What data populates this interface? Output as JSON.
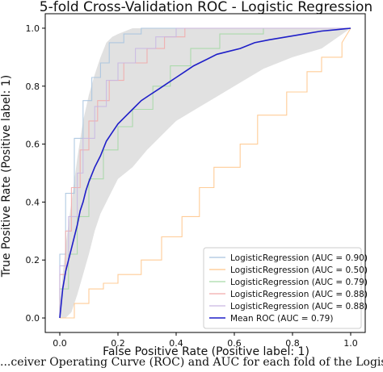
{
  "caption": "...ceiver Operating Curve (ROC) and AUC for each fold of the Logistic Re",
  "chart_data": {
    "type": "line",
    "title": "5-fold Cross-Validation ROC - Logistic Regression",
    "xlabel": "False Positive Rate (Positive label: 1)",
    "ylabel": "True Positive Rate (Positive label: 1)",
    "xlim": [
      -0.05,
      1.05
    ],
    "ylim": [
      -0.05,
      1.05
    ],
    "xticks": [
      "0.0",
      "0.2",
      "0.4",
      "0.6",
      "0.8",
      "1.0"
    ],
    "yticks": [
      "0.0",
      "0.2",
      "0.4",
      "0.6",
      "0.8",
      "1.0"
    ],
    "grid": false,
    "legend_position": "lower-right",
    "series": [
      {
        "name": "LogisticRegression (AUC = 0.90)",
        "color": "#a9c4df",
        "x": [
          0,
          0,
          0.02,
          0.02,
          0.05,
          0.05,
          0.08,
          0.08,
          0.11,
          0.11,
          0.14,
          0.14,
          0.17,
          0.17,
          0.22,
          0.22,
          0.28,
          0.28,
          0.4,
          0.4,
          0.6,
          0.6,
          1.0
        ],
        "y": [
          0,
          0.22,
          0.22,
          0.43,
          0.43,
          0.62,
          0.62,
          0.75,
          0.75,
          0.83,
          0.83,
          0.88,
          0.88,
          0.95,
          0.95,
          0.98,
          0.98,
          1.0,
          1.0,
          1.0,
          1.0,
          1.0,
          1.0
        ]
      },
      {
        "name": "LogisticRegression (AUC = 0.50)",
        "color": "#ffc68c",
        "x": [
          0,
          0.05,
          0.05,
          0.1,
          0.1,
          0.15,
          0.15,
          0.2,
          0.2,
          0.28,
          0.28,
          0.35,
          0.35,
          0.42,
          0.42,
          0.48,
          0.48,
          0.53,
          0.53,
          0.62,
          0.62,
          0.68,
          0.68,
          0.78,
          0.78,
          0.85,
          0.85,
          0.9,
          0.9,
          0.97,
          0.97,
          1.0
        ],
        "y": [
          0,
          0,
          0.05,
          0.05,
          0.1,
          0.1,
          0.12,
          0.12,
          0.15,
          0.15,
          0.2,
          0.2,
          0.28,
          0.28,
          0.35,
          0.35,
          0.45,
          0.45,
          0.52,
          0.52,
          0.6,
          0.6,
          0.7,
          0.7,
          0.78,
          0.78,
          0.85,
          0.85,
          0.9,
          0.9,
          0.95,
          1.0
        ]
      },
      {
        "name": "LogisticRegression (AUC = 0.79)",
        "color": "#a6d9a6",
        "x": [
          0,
          0,
          0.03,
          0.03,
          0.06,
          0.06,
          0.1,
          0.1,
          0.15,
          0.15,
          0.2,
          0.2,
          0.25,
          0.25,
          0.32,
          0.32,
          0.38,
          0.38,
          0.45,
          0.45,
          0.55,
          0.55,
          0.7,
          0.7,
          1.0
        ],
        "y": [
          0,
          0.1,
          0.1,
          0.22,
          0.22,
          0.35,
          0.35,
          0.48,
          0.48,
          0.58,
          0.58,
          0.66,
          0.66,
          0.72,
          0.72,
          0.8,
          0.8,
          0.87,
          0.87,
          0.93,
          0.93,
          0.98,
          0.98,
          1.0,
          1.0
        ]
      },
      {
        "name": "LogisticRegression (AUC = 0.88)",
        "color": "#f2aaaa",
        "x": [
          0,
          0,
          0.02,
          0.02,
          0.04,
          0.04,
          0.07,
          0.07,
          0.1,
          0.1,
          0.13,
          0.13,
          0.17,
          0.17,
          0.22,
          0.22,
          0.3,
          0.3,
          0.36,
          0.36,
          0.43,
          0.43,
          0.6,
          0.6,
          1.0
        ],
        "y": [
          0,
          0.15,
          0.15,
          0.3,
          0.3,
          0.45,
          0.45,
          0.58,
          0.58,
          0.68,
          0.68,
          0.75,
          0.75,
          0.82,
          0.82,
          0.88,
          0.88,
          0.93,
          0.93,
          0.97,
          0.97,
          1.0,
          1.0,
          1.0,
          1.0
        ]
      },
      {
        "name": "LogisticRegression (AUC = 0.88)",
        "color": "#c9b8e2",
        "x": [
          0,
          0,
          0.03,
          0.03,
          0.06,
          0.06,
          0.08,
          0.08,
          0.12,
          0.12,
          0.16,
          0.16,
          0.2,
          0.2,
          0.26,
          0.26,
          0.33,
          0.33,
          0.4,
          0.4,
          0.5,
          0.5,
          1.0
        ],
        "y": [
          0,
          0.18,
          0.18,
          0.35,
          0.35,
          0.5,
          0.5,
          0.62,
          0.62,
          0.73,
          0.73,
          0.82,
          0.82,
          0.88,
          0.88,
          0.93,
          0.93,
          0.97,
          0.97,
          1.0,
          1.0,
          1.0,
          1.0
        ]
      },
      {
        "name": "Mean ROC (AUC = 0.79)",
        "color": "#1f1fc8",
        "x": [
          0,
          0.01,
          0.02,
          0.03,
          0.04,
          0.05,
          0.06,
          0.07,
          0.08,
          0.09,
          0.1,
          0.12,
          0.14,
          0.16,
          0.18,
          0.2,
          0.22,
          0.25,
          0.28,
          0.31,
          0.34,
          0.37,
          0.4,
          0.43,
          0.46,
          0.5,
          0.54,
          0.58,
          0.62,
          0.67,
          0.72,
          0.78,
          0.84,
          0.9,
          0.95,
          0.98,
          1.0
        ],
        "y": [
          0,
          0.1,
          0.16,
          0.2,
          0.24,
          0.28,
          0.32,
          0.37,
          0.4,
          0.44,
          0.47,
          0.52,
          0.56,
          0.61,
          0.64,
          0.67,
          0.69,
          0.72,
          0.75,
          0.77,
          0.79,
          0.81,
          0.83,
          0.85,
          0.87,
          0.89,
          0.91,
          0.92,
          0.93,
          0.95,
          0.96,
          0.97,
          0.98,
          0.99,
          0.995,
          0.998,
          1.0
        ]
      }
    ],
    "band": {
      "color": "#c8c8c8",
      "x": [
        0,
        0.02,
        0.04,
        0.06,
        0.08,
        0.1,
        0.12,
        0.14,
        0.16,
        0.18,
        0.2,
        0.25,
        0.3,
        0.35,
        0.4,
        0.5,
        0.6,
        0.7,
        0.8,
        0.9,
        1.0
      ],
      "upper": [
        0.05,
        0.25,
        0.4,
        0.55,
        0.68,
        0.77,
        0.84,
        0.9,
        0.95,
        0.97,
        0.98,
        1.0,
        1.0,
        1.0,
        1.0,
        1.0,
        1.0,
        1.0,
        1.0,
        1.0,
        1.0
      ],
      "lower": [
        0,
        0.0,
        0.02,
        0.08,
        0.15,
        0.22,
        0.3,
        0.36,
        0.4,
        0.44,
        0.48,
        0.52,
        0.58,
        0.63,
        0.68,
        0.74,
        0.8,
        0.86,
        0.9,
        0.93,
        1.0
      ]
    }
  }
}
